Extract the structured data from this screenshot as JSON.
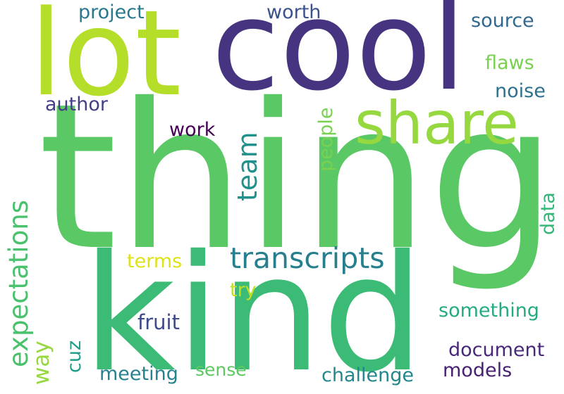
{
  "words": [
    {
      "text": "thing",
      "color": "#5ac864",
      "orientation": "horizontal"
    },
    {
      "text": "kind",
      "color": "#3bbb75",
      "orientation": "horizontal"
    },
    {
      "text": "cool",
      "color": "#463480",
      "orientation": "horizontal"
    },
    {
      "text": "lot",
      "color": "#b5de2b",
      "orientation": "horizontal"
    },
    {
      "text": "share",
      "color": "#95d840",
      "orientation": "horizontal"
    },
    {
      "text": "transcripts",
      "color": "#277f8e",
      "orientation": "horizontal"
    },
    {
      "text": "expectations",
      "color": "#4ac16d",
      "orientation": "vertical"
    },
    {
      "text": "team",
      "color": "#21918c",
      "orientation": "vertical"
    },
    {
      "text": "project",
      "color": "#2a788e",
      "orientation": "horizontal"
    },
    {
      "text": "worth",
      "color": "#3b528b",
      "orientation": "horizontal"
    },
    {
      "text": "source",
      "color": "#31688e",
      "orientation": "horizontal"
    },
    {
      "text": "flaws",
      "color": "#7ad151",
      "orientation": "horizontal"
    },
    {
      "text": "noise",
      "color": "#2c728e",
      "orientation": "horizontal"
    },
    {
      "text": "author",
      "color": "#433e85",
      "orientation": "horizontal"
    },
    {
      "text": "work",
      "color": "#440154",
      "orientation": "horizontal"
    },
    {
      "text": "people",
      "color": "#7ad151",
      "orientation": "vertical"
    },
    {
      "text": "data",
      "color": "#35b779",
      "orientation": "vertical"
    },
    {
      "text": "terms",
      "color": "#dde318",
      "orientation": "horizontal"
    },
    {
      "text": "try",
      "color": "#c2df23",
      "orientation": "horizontal"
    },
    {
      "text": "way",
      "color": "#95d840",
      "orientation": "vertical"
    },
    {
      "text": "cuz",
      "color": "#1f9e89",
      "orientation": "vertical"
    },
    {
      "text": "fruit",
      "color": "#3e4a89",
      "orientation": "horizontal"
    },
    {
      "text": "something",
      "color": "#25ab82",
      "orientation": "horizontal"
    },
    {
      "text": "document",
      "color": "#482878",
      "orientation": "horizontal"
    },
    {
      "text": "models",
      "color": "#482173",
      "orientation": "horizontal"
    },
    {
      "text": "meeting",
      "color": "#26828e",
      "orientation": "horizontal"
    },
    {
      "text": "sense",
      "color": "#5ec962",
      "orientation": "horizontal"
    },
    {
      "text": "challenge",
      "color": "#23888e",
      "orientation": "horizontal"
    }
  ]
}
